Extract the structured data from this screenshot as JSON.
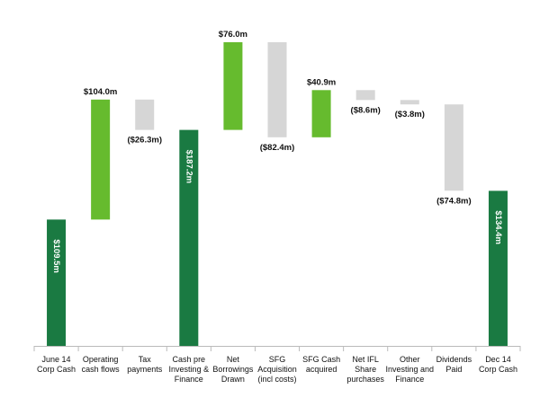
{
  "chart_data": {
    "type": "waterfall",
    "categories": [
      "June 14\nCorp Cash",
      "Operating\ncash flows",
      "Tax\npayments",
      "Cash pre\nInvesting &\nFinance",
      "Net\nBorrowings\nDrawn",
      "SFG\nAcquisition\n(incl costs)",
      "SFG Cash\nacquired",
      "Net IFL\nShare\npurchases",
      "Other\nInvesting and\nFinance",
      "Dividends\nPaid",
      "Dec 14\nCorp Cash"
    ],
    "values": [
      109.5,
      104.0,
      -26.3,
      187.2,
      76.0,
      -82.4,
      40.9,
      -8.6,
      -3.8,
      -74.8,
      134.4
    ],
    "value_labels": [
      "$109.5m",
      "$104.0m",
      "($26.3m)",
      "$187.2m",
      "$76.0m",
      "($82.4m)",
      "$40.9m",
      "($8.6m)",
      "($3.8m)",
      "($74.8m)",
      "$134.4m"
    ],
    "colors": [
      "#1a7a42",
      "#66bb2e",
      "#d6d6d6",
      "#1a7a42",
      "#66bb2e",
      "#d6d6d6",
      "#66bb2e",
      "#d6d6d6",
      "#d6d6d6",
      "#d6d6d6",
      "#1a7a42"
    ],
    "total_color": "#1a7a42"
  }
}
